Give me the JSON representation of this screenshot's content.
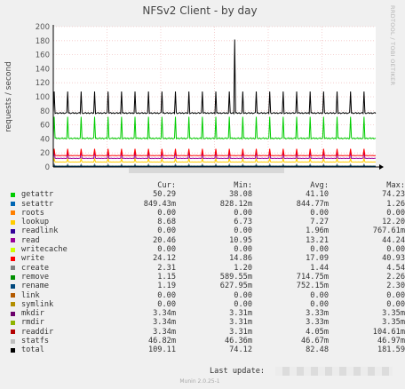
{
  "chart_data": {
    "type": "line",
    "title": "NFSv2 Client - by day",
    "ylabel": "requests / second",
    "watermark": "RRDTOOL / TOBI OETIKER",
    "ylim": [
      0,
      200
    ],
    "yticks": [
      0,
      20,
      40,
      60,
      80,
      100,
      120,
      140,
      160,
      180,
      200
    ],
    "grid": true,
    "legend_position": "below",
    "legend_headers": [
      "Cur:",
      "Min:",
      "Avg:",
      "Max:"
    ],
    "series": [
      {
        "name": "getattr",
        "color": "#00cc00",
        "cur": "50.29",
        "min": "38.08",
        "avg": "41.10",
        "max": "74.23",
        "base": 40,
        "peak": 72
      },
      {
        "name": "setattr",
        "color": "#0066b3",
        "cur": "849.43m",
        "min": "828.12m",
        "avg": "844.77m",
        "max": "1.26",
        "base": 0.85,
        "peak": 1.26
      },
      {
        "name": "roots",
        "color": "#ff8000",
        "cur": "0.00",
        "min": "0.00",
        "avg": "0.00",
        "max": "0.00",
        "base": 0,
        "peak": 0
      },
      {
        "name": "lookup",
        "color": "#ffcc00",
        "cur": "8.68",
        "min": "6.73",
        "avg": "7.27",
        "max": "12.20",
        "base": 7,
        "peak": 12
      },
      {
        "name": "readlink",
        "color": "#330099",
        "cur": "0.00",
        "min": "0.00",
        "avg": "1.96m",
        "max": "767.61m",
        "base": 0,
        "peak": 0.7
      },
      {
        "name": "read",
        "color": "#990099",
        "cur": "20.46",
        "min": "10.95",
        "avg": "13.21",
        "max": "44.24",
        "base": 12,
        "peak": 22
      },
      {
        "name": "writecache",
        "color": "#ccff00",
        "cur": "0.00",
        "min": "0.00",
        "avg": "0.00",
        "max": "0.00",
        "base": 0,
        "peak": 0
      },
      {
        "name": "write",
        "color": "#ff0000",
        "cur": "24.12",
        "min": "14.86",
        "avg": "17.09",
        "max": "40.93",
        "base": 16,
        "peak": 26
      },
      {
        "name": "create",
        "color": "#808080",
        "cur": "2.31",
        "min": "1.20",
        "avg": "1.44",
        "max": "4.54",
        "base": 1.4,
        "peak": 4
      },
      {
        "name": "remove",
        "color": "#008f00",
        "cur": "1.15",
        "min": "589.55m",
        "avg": "714.75m",
        "max": "2.26",
        "base": 0.7,
        "peak": 2
      },
      {
        "name": "rename",
        "color": "#00487d",
        "cur": "1.19",
        "min": "627.95m",
        "avg": "752.15m",
        "max": "2.30",
        "base": 0.75,
        "peak": 2
      },
      {
        "name": "link",
        "color": "#b35a00",
        "cur": "0.00",
        "min": "0.00",
        "avg": "0.00",
        "max": "0.00",
        "base": 0,
        "peak": 0
      },
      {
        "name": "symlink",
        "color": "#b38f00",
        "cur": "0.00",
        "min": "0.00",
        "avg": "0.00",
        "max": "0.00",
        "base": 0,
        "peak": 0
      },
      {
        "name": "mkdir",
        "color": "#6b006b",
        "cur": "3.34m",
        "min": "3.31m",
        "avg": "3.33m",
        "max": "3.35m",
        "base": 0,
        "peak": 0
      },
      {
        "name": "rmdir",
        "color": "#8fb300",
        "cur": "3.34m",
        "min": "3.31m",
        "avg": "3.33m",
        "max": "3.35m",
        "base": 0,
        "peak": 0
      },
      {
        "name": "readdir",
        "color": "#b30000",
        "cur": "3.34m",
        "min": "3.31m",
        "avg": "4.05m",
        "max": "104.61m",
        "base": 0,
        "peak": 0.1
      },
      {
        "name": "statfs",
        "color": "#bebebe",
        "cur": "46.82m",
        "min": "46.36m",
        "avg": "46.67m",
        "max": "46.97m",
        "base": 0.05,
        "peak": 0.05
      },
      {
        "name": "total",
        "color": "#000000",
        "cur": "109.11",
        "min": "74.12",
        "avg": "82.48",
        "max": "181.59",
        "base": 76,
        "peak": 108,
        "spike": 181.59
      }
    ],
    "spikes_per_day": 24
  },
  "footer": {
    "last_update_label": "Last update:",
    "last_update_value": "",
    "version": "Munin 2.0.25-1"
  }
}
